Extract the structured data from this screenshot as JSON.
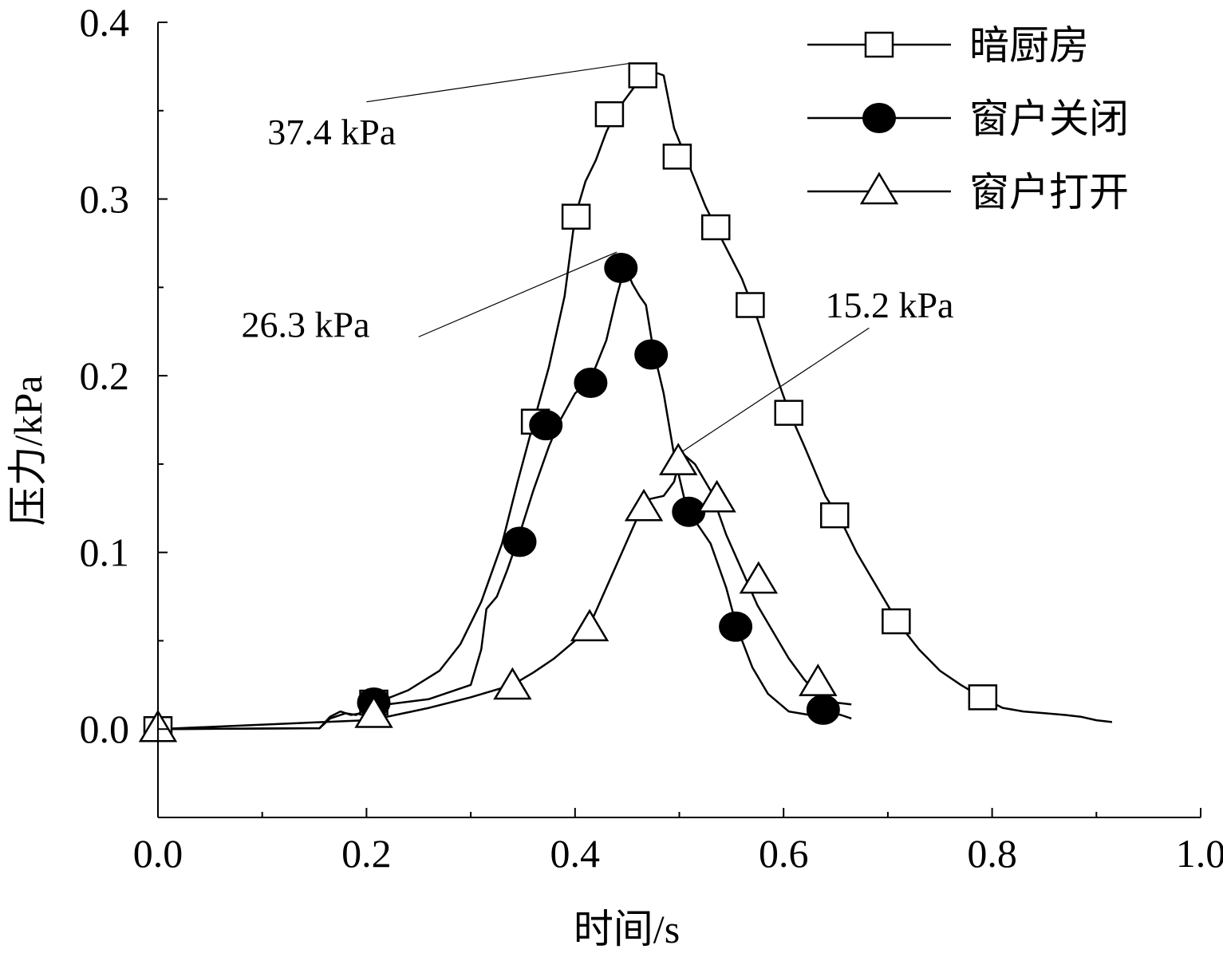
{
  "chart_data": {
    "type": "line",
    "title": "",
    "xlabel": "时间/s",
    "ylabel": "压力/kPa",
    "xlim": [
      0.0,
      1.0
    ],
    "ylim": [
      -0.05,
      0.4
    ],
    "x_ticks": [
      "0.0",
      "0.2",
      "0.4",
      "0.6",
      "0.8",
      "1.0"
    ],
    "y_ticks": [
      "0.0",
      "0.1",
      "0.2",
      "0.3",
      "0.4"
    ],
    "grid": false,
    "legend_position": "top-right",
    "series": [
      {
        "name": "暗厨房",
        "marker": "open-square",
        "color": "#000000",
        "curve": [
          [
            0.0,
            0.0
          ],
          [
            0.155,
            0.0005
          ],
          [
            0.165,
            0.006
          ],
          [
            0.18,
            0.009
          ],
          [
            0.19,
            0.008
          ],
          [
            0.2,
            0.011
          ],
          [
            0.21,
            0.015
          ],
          [
            0.24,
            0.022
          ],
          [
            0.27,
            0.033
          ],
          [
            0.29,
            0.048
          ],
          [
            0.31,
            0.072
          ],
          [
            0.33,
            0.105
          ],
          [
            0.345,
            0.14
          ],
          [
            0.36,
            0.173
          ],
          [
            0.375,
            0.205
          ],
          [
            0.39,
            0.245
          ],
          [
            0.4,
            0.29
          ],
          [
            0.41,
            0.31
          ],
          [
            0.42,
            0.322
          ],
          [
            0.43,
            0.338
          ],
          [
            0.44,
            0.35
          ],
          [
            0.455,
            0.362
          ],
          [
            0.465,
            0.37
          ],
          [
            0.475,
            0.372
          ],
          [
            0.485,
            0.37
          ],
          [
            0.495,
            0.34
          ],
          [
            0.51,
            0.318
          ],
          [
            0.525,
            0.296
          ],
          [
            0.54,
            0.278
          ],
          [
            0.56,
            0.255
          ],
          [
            0.575,
            0.232
          ],
          [
            0.59,
            0.205
          ],
          [
            0.605,
            0.18
          ],
          [
            0.62,
            0.16
          ],
          [
            0.64,
            0.132
          ],
          [
            0.655,
            0.118
          ],
          [
            0.67,
            0.1
          ],
          [
            0.69,
            0.08
          ],
          [
            0.71,
            0.06
          ],
          [
            0.73,
            0.045
          ],
          [
            0.75,
            0.033
          ],
          [
            0.77,
            0.025
          ],
          [
            0.79,
            0.018
          ],
          [
            0.81,
            0.012
          ],
          [
            0.83,
            0.01
          ],
          [
            0.85,
            0.009
          ],
          [
            0.87,
            0.008
          ],
          [
            0.885,
            0.007
          ],
          [
            0.9,
            0.005
          ],
          [
            0.915,
            0.004
          ]
        ],
        "markers": [
          [
            0.0,
            0.0
          ],
          [
            0.207,
            0.015
          ],
          [
            0.362,
            0.174
          ],
          [
            0.401,
            0.29
          ],
          [
            0.433,
            0.348
          ],
          [
            0.465,
            0.37
          ],
          [
            0.498,
            0.324
          ],
          [
            0.535,
            0.284
          ],
          [
            0.568,
            0.24
          ],
          [
            0.605,
            0.179
          ],
          [
            0.649,
            0.121
          ],
          [
            0.708,
            0.061
          ],
          [
            0.791,
            0.018
          ]
        ]
      },
      {
        "name": "窗户关闭",
        "marker": "filled-circle",
        "color": "#000000",
        "curve": [
          [
            0.0,
            0.0
          ],
          [
            0.155,
            0.0005
          ],
          [
            0.165,
            0.007
          ],
          [
            0.175,
            0.01
          ],
          [
            0.185,
            0.008
          ],
          [
            0.195,
            0.009
          ],
          [
            0.205,
            0.012
          ],
          [
            0.22,
            0.014
          ],
          [
            0.26,
            0.017
          ],
          [
            0.3,
            0.025
          ],
          [
            0.31,
            0.045
          ],
          [
            0.315,
            0.068
          ],
          [
            0.325,
            0.075
          ],
          [
            0.335,
            0.09
          ],
          [
            0.345,
            0.107
          ],
          [
            0.36,
            0.135
          ],
          [
            0.375,
            0.16
          ],
          [
            0.385,
            0.174
          ],
          [
            0.4,
            0.19
          ],
          [
            0.415,
            0.198
          ],
          [
            0.43,
            0.22
          ],
          [
            0.44,
            0.245
          ],
          [
            0.448,
            0.262
          ],
          [
            0.455,
            0.252
          ],
          [
            0.462,
            0.245
          ],
          [
            0.468,
            0.24
          ],
          [
            0.475,
            0.215
          ],
          [
            0.485,
            0.19
          ],
          [
            0.495,
            0.155
          ],
          [
            0.505,
            0.13
          ],
          [
            0.515,
            0.118
          ],
          [
            0.53,
            0.105
          ],
          [
            0.545,
            0.08
          ],
          [
            0.555,
            0.058
          ],
          [
            0.57,
            0.035
          ],
          [
            0.585,
            0.02
          ],
          [
            0.605,
            0.01
          ],
          [
            0.625,
            0.008
          ],
          [
            0.64,
            0.01
          ],
          [
            0.655,
            0.008
          ],
          [
            0.665,
            0.006
          ]
        ],
        "markers": [
          [
            0.207,
            0.015
          ],
          [
            0.347,
            0.106
          ],
          [
            0.372,
            0.172
          ],
          [
            0.415,
            0.196
          ],
          [
            0.444,
            0.261
          ],
          [
            0.473,
            0.212
          ],
          [
            0.509,
            0.123
          ],
          [
            0.554,
            0.058
          ],
          [
            0.638,
            0.011
          ]
        ]
      },
      {
        "name": "窗户打开",
        "marker": "open-triangle",
        "color": "#000000",
        "curve": [
          [
            0.0,
            0.0
          ],
          [
            0.2,
            0.005
          ],
          [
            0.22,
            0.007
          ],
          [
            0.26,
            0.012
          ],
          [
            0.3,
            0.018
          ],
          [
            0.34,
            0.025
          ],
          [
            0.36,
            0.032
          ],
          [
            0.38,
            0.04
          ],
          [
            0.4,
            0.05
          ],
          [
            0.415,
            0.06
          ],
          [
            0.43,
            0.08
          ],
          [
            0.445,
            0.1
          ],
          [
            0.46,
            0.12
          ],
          [
            0.47,
            0.13
          ],
          [
            0.485,
            0.132
          ],
          [
            0.495,
            0.14
          ],
          [
            0.5,
            0.152
          ],
          [
            0.505,
            0.155
          ],
          [
            0.515,
            0.15
          ],
          [
            0.53,
            0.135
          ],
          [
            0.545,
            0.11
          ],
          [
            0.56,
            0.09
          ],
          [
            0.575,
            0.07
          ],
          [
            0.59,
            0.055
          ],
          [
            0.605,
            0.04
          ],
          [
            0.62,
            0.028
          ],
          [
            0.635,
            0.018
          ],
          [
            0.65,
            0.015
          ],
          [
            0.665,
            0.014
          ]
        ],
        "markers": [
          [
            0.0,
            0.0
          ],
          [
            0.207,
            0.008
          ],
          [
            0.34,
            0.024
          ],
          [
            0.414,
            0.057
          ],
          [
            0.466,
            0.125
          ],
          [
            0.499,
            0.151
          ],
          [
            0.536,
            0.13
          ],
          [
            0.576,
            0.084
          ],
          [
            0.633,
            0.026
          ]
        ]
      }
    ],
    "annotations": [
      {
        "text": "37.4 kPa",
        "x": 0.105,
        "y": 0.331,
        "line_from": [
          0.2,
          0.355
        ],
        "line_to": [
          0.455,
          0.377
        ]
      },
      {
        "text": "26.3 kPa",
        "x": 0.08,
        "y": 0.222,
        "line_from": [
          0.25,
          0.222
        ],
        "line_to": [
          0.44,
          0.27
        ]
      },
      {
        "text": "15.2 kPa",
        "x": 0.64,
        "y": 0.233,
        "line_from": [
          0.682,
          0.227
        ],
        "line_to": [
          0.5,
          0.156
        ]
      }
    ]
  }
}
